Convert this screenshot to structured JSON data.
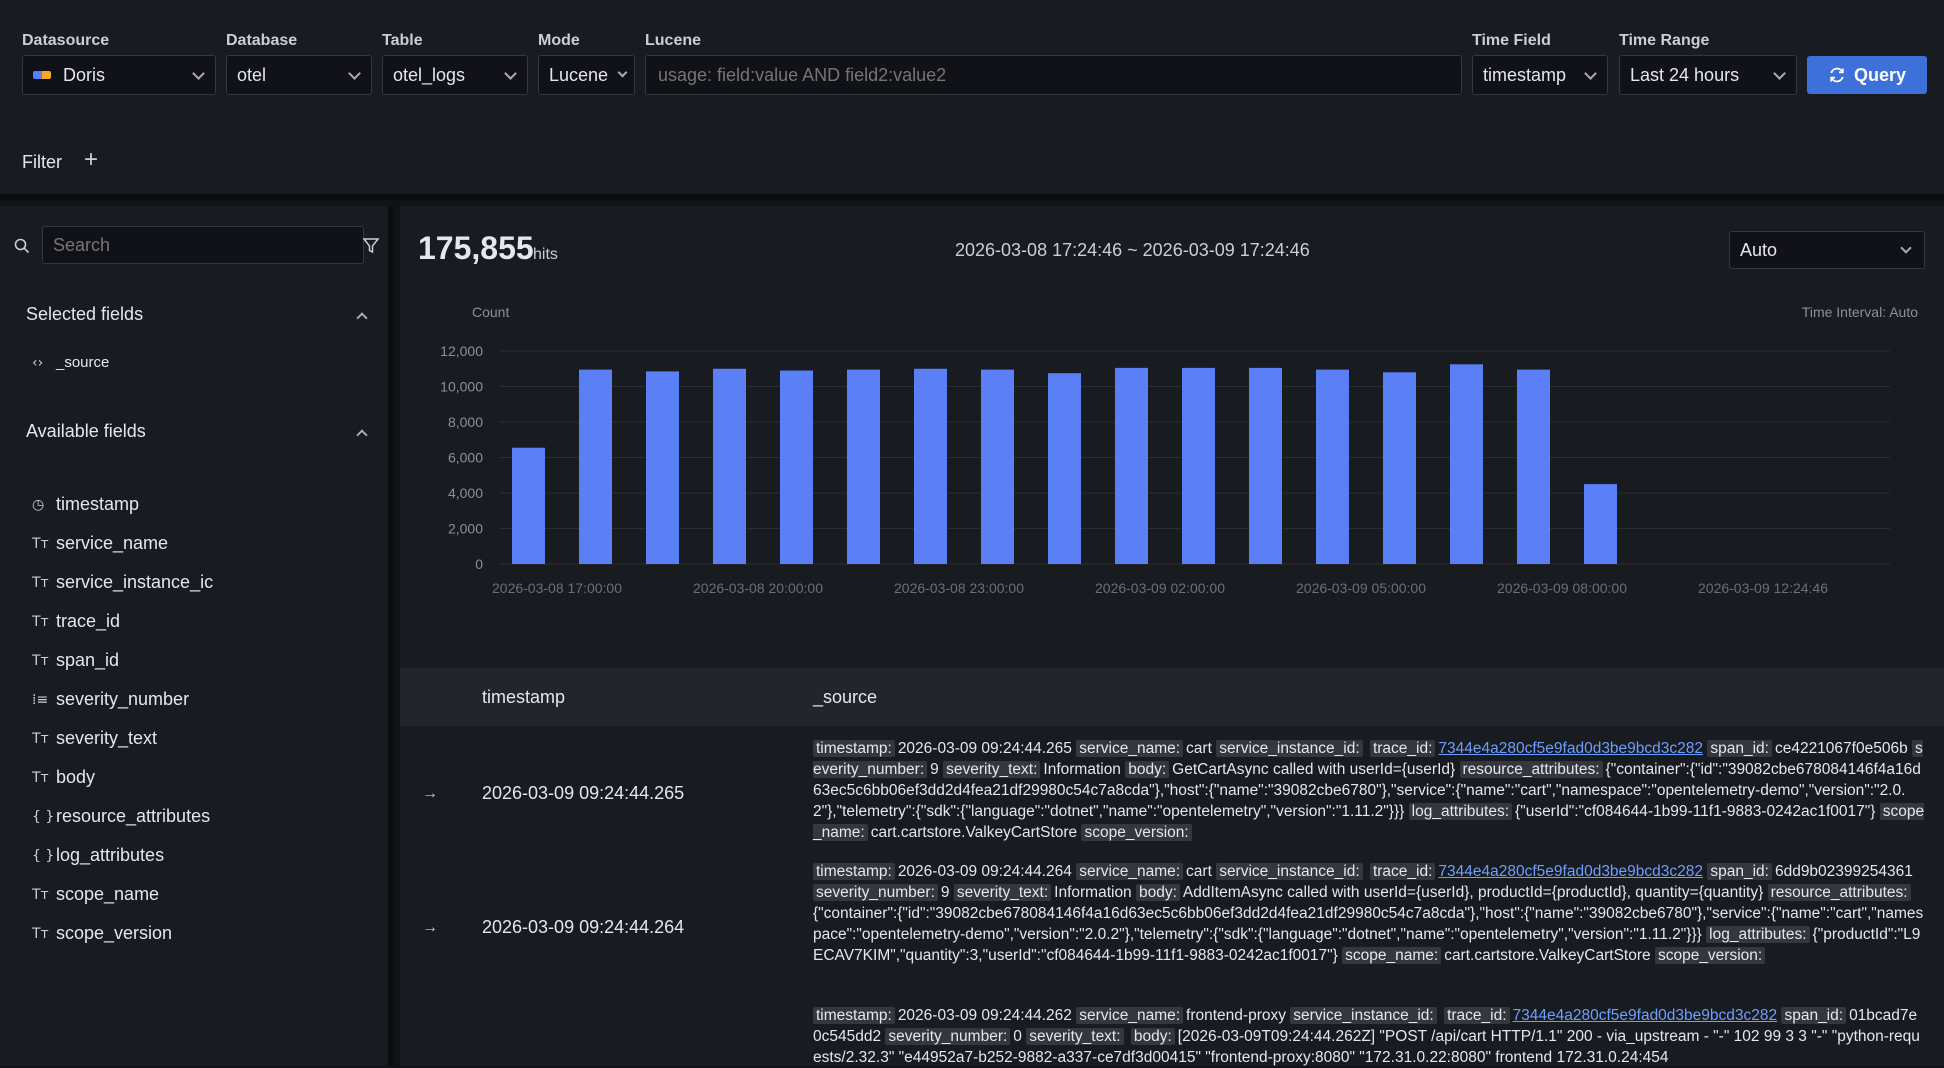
{
  "toolbar": {
    "datasource_label": "Datasource",
    "datasource_value": "Doris",
    "database_label": "Database",
    "database_value": "otel",
    "table_label": "Table",
    "table_value": "otel_logs",
    "mode_label": "Mode",
    "mode_value": "Lucene",
    "lucene_label": "Lucene",
    "lucene_placeholder": "usage: field:value AND field2:value2",
    "timefield_label": "Time Field",
    "timefield_value": "timestamp",
    "timerange_label": "Time Range",
    "timerange_value": "Last 24 hours",
    "query_label": "Query",
    "filter_label": "Filter",
    "filter_add": "+"
  },
  "sidebar": {
    "search_placeholder": "Search",
    "selected_title": "Selected fields",
    "selected_fields": [
      {
        "icon": "<>",
        "name": "_source"
      }
    ],
    "available_title": "Available fields",
    "available_fields": [
      {
        "icon": "clock",
        "name": "timestamp"
      },
      {
        "icon": "text",
        "name": "service_name"
      },
      {
        "icon": "text",
        "name": "service_instance_ic"
      },
      {
        "icon": "text",
        "name": "trace_id"
      },
      {
        "icon": "text",
        "name": "span_id"
      },
      {
        "icon": "number",
        "name": "severity_number"
      },
      {
        "icon": "text",
        "name": "severity_text"
      },
      {
        "icon": "text",
        "name": "body"
      },
      {
        "icon": "json",
        "name": "resource_attributes"
      },
      {
        "icon": "json",
        "name": "log_attributes"
      },
      {
        "icon": "text",
        "name": "scope_name"
      },
      {
        "icon": "text",
        "name": "scope_version"
      }
    ]
  },
  "summary": {
    "hits": "175,855",
    "hits_label": "hits",
    "range": "2026-03-08 17:24:46 ~ 2026-03-09 17:24:46",
    "interval_select": "Auto",
    "count_label": "Count",
    "interval_label": "Time Interval: Auto"
  },
  "chart_data": {
    "type": "bar",
    "ylabel": "Count",
    "ylim": [
      0,
      12000
    ],
    "yticks": [
      "0",
      "2,000",
      "4,000",
      "6,000",
      "8,000",
      "10,000",
      "12,000"
    ],
    "xticks": [
      "2026-03-08 17:00:00",
      "2026-03-08 20:00:00",
      "2026-03-08 23:00:00",
      "2026-03-09 02:00:00",
      "2026-03-09 05:00:00",
      "2026-03-09 08:00:00",
      "2026-03-09 12:24:46"
    ],
    "values": [
      6550,
      10950,
      10850,
      11000,
      10900,
      10950,
      11000,
      10950,
      10750,
      11050,
      11050,
      11050,
      10950,
      10800,
      11250,
      10950,
      4500
    ],
    "color": "#5b7ff7",
    "grid": true
  },
  "table": {
    "col_timestamp": "timestamp",
    "col_source": "_source",
    "rows": [
      {
        "timestamp": "2026-03-09 09:24:44.265",
        "kv": [
          {
            "k": "timestamp:",
            "v": "2026-03-09 09:24:44.265"
          },
          {
            "k": "service_name:",
            "v": "cart"
          },
          {
            "k": "service_instance_id:",
            "v": ""
          },
          {
            "k": "trace_id:",
            "v": "7344e4a280cf5e9fad0d3be9bcd3c282",
            "link": true
          },
          {
            "k": "span_id:",
            "v": "ce4221067f0e506b"
          },
          {
            "k": "severity_number:",
            "v": "9"
          },
          {
            "k": "severity_text:",
            "v": "Information"
          },
          {
            "k": "body:",
            "v": "GetCartAsync called with userId={userId}"
          },
          {
            "k": "resource_attributes:",
            "v": "{\"container\":{\"id\":\"39082cbe678084146f4a16d63ec5c6bb06ef3dd2d4fea21df29980c54c7a8cda\"},\"host\":{\"name\":\"39082cbe6780\"},\"service\":{\"name\":\"cart\",\"namespace\":\"opentelemetry-demo\",\"version\":\"2.0.2\"},\"telemetry\":{\"sdk\":{\"language\":\"dotnet\",\"name\":\"opentelemetry\",\"version\":\"1.11.2\"}}}"
          },
          {
            "k": "log_attributes:",
            "v": "{\"userId\":\"cf084644-1b99-11f1-9883-0242ac1f0017\"}"
          },
          {
            "k": "scope_name:",
            "v": "cart.cartstore.ValkeyCartStore"
          },
          {
            "k": "scope_version:",
            "v": ""
          }
        ]
      },
      {
        "timestamp": "2026-03-09 09:24:44.264",
        "kv": [
          {
            "k": "timestamp:",
            "v": "2026-03-09 09:24:44.264"
          },
          {
            "k": "service_name:",
            "v": "cart"
          },
          {
            "k": "service_instance_id:",
            "v": ""
          },
          {
            "k": "trace_id:",
            "v": "7344e4a280cf5e9fad0d3be9bcd3c282",
            "link": true
          },
          {
            "k": "span_id:",
            "v": "6dd9b02399254361"
          },
          {
            "k": "severity_number:",
            "v": "9"
          },
          {
            "k": "severity_text:",
            "v": "Information"
          },
          {
            "k": "body:",
            "v": "AddItemAsync called with userId={userId}, productId={productId}, quantity={quantity}"
          },
          {
            "k": "resource_attributes:",
            "v": "{\"container\":{\"id\":\"39082cbe678084146f4a16d63ec5c6bb06ef3dd2d4fea21df29980c54c7a8cda\"},\"host\":{\"name\":\"39082cbe6780\"},\"service\":{\"name\":\"cart\",\"namespace\":\"opentelemetry-demo\",\"version\":\"2.0.2\"},\"telemetry\":{\"sdk\":{\"language\":\"dotnet\",\"name\":\"opentelemetry\",\"version\":\"1.11.2\"}}}"
          },
          {
            "k": "log_attributes:",
            "v": "{\"productId\":\"L9ECAV7KIM\",\"quantity\":3,\"userId\":\"cf084644-1b99-11f1-9883-0242ac1f0017\"}"
          },
          {
            "k": "scope_name:",
            "v": "cart.cartstore.ValkeyCartStore"
          },
          {
            "k": "scope_version:",
            "v": ""
          }
        ]
      },
      {
        "timestamp": "",
        "kv": [
          {
            "k": "timestamp:",
            "v": "2026-03-09 09:24:44.262"
          },
          {
            "k": "service_name:",
            "v": "frontend-proxy"
          },
          {
            "k": "service_instance_id:",
            "v": ""
          },
          {
            "k": "trace_id:",
            "v": "7344e4a280cf5e9fad0d3be9bcd3c282",
            "link": true
          },
          {
            "k": "span_id:",
            "v": "01bcad7e0c545dd2"
          },
          {
            "k": "severity_number:",
            "v": "0"
          },
          {
            "k": "severity_text:",
            "v": ""
          },
          {
            "k": "body:",
            "v": "[2026-03-09T09:24:44.262Z] \"POST /api/cart HTTP/1.1\" 200 - via_upstream - \"-\" 102 99 3 3 \"-\" \"python-requests/2.32.3\" \"e44952a7-b252-9882-a337-ce7df3d00415\" \"frontend-proxy:8080\" \"172.31.0.22:8080\" frontend 172.31.0.24:454"
          }
        ]
      }
    ]
  }
}
